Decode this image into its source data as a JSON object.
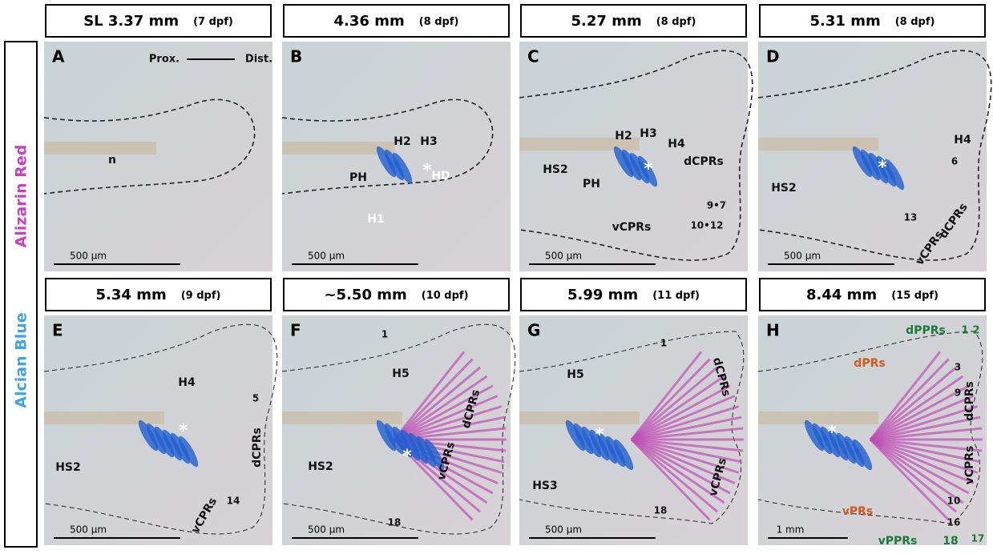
{
  "side_label": {
    "blue": "Alcian Blue",
    "red": "Alizarin Red"
  },
  "panels": [
    {
      "letter": "A",
      "header": {
        "size": "SL 3.37 mm",
        "dpf": "(7 dpf)"
      },
      "labels": [
        "Prox.",
        "Dist.",
        "n"
      ],
      "scale_bar": "500 µm"
    },
    {
      "letter": "B",
      "header": {
        "size": "4.36 mm",
        "dpf": "(8 dpf)"
      },
      "labels": [
        "H2",
        "H3",
        "PH",
        "HD",
        "H1",
        "*"
      ],
      "scale_bar": "500 µm"
    },
    {
      "letter": "C",
      "header": {
        "size": "5.27 mm",
        "dpf": "(8 dpf)"
      },
      "labels": [
        "H2",
        "H3",
        "H4",
        "HS2",
        "PH",
        "dCPRs",
        "9•7",
        "10•12",
        "vCPRs",
        "*"
      ],
      "scale_bar": "500 µm"
    },
    {
      "letter": "D",
      "header": {
        "size": "5.31 mm",
        "dpf": "(8 dpf)"
      },
      "labels": [
        "H4",
        "HS2",
        "6",
        "13",
        "vCPRs",
        "dCPRs",
        "*"
      ],
      "scale_bar": "500 µm"
    },
    {
      "letter": "E",
      "header": {
        "size": "5.34 mm",
        "dpf": "(9 dpf)"
      },
      "labels": [
        "H4",
        "HS2",
        "5",
        "14",
        "dCPRs",
        "vCPRs",
        "*"
      ],
      "scale_bar": "500 µm"
    },
    {
      "letter": "F",
      "header": {
        "size": "~5.50 mm",
        "dpf": "(10 dpf)"
      },
      "labels": [
        "H5",
        "1",
        "HS2",
        "18",
        "dCPRs",
        "vCPRs",
        "*"
      ],
      "scale_bar": "500 µm"
    },
    {
      "letter": "G",
      "header": {
        "size": "5.99 mm",
        "dpf": "(11 dpf)"
      },
      "labels": [
        "H5",
        "1",
        "dCPRs",
        "HS3",
        "18",
        "vCPRs",
        "*"
      ],
      "scale_bar": "500 µm"
    },
    {
      "letter": "H",
      "header": {
        "size": "8.44 mm",
        "dpf": "(15 dpf)"
      },
      "labels": [
        "dPPRs",
        "1",
        "2",
        "dPRs",
        "3",
        "9",
        "dCPRs",
        "vCPRs",
        "10",
        "16",
        "vPRs",
        "vPPRs",
        "18",
        "17",
        "*"
      ],
      "scale_bar": "1 mm"
    }
  ]
}
